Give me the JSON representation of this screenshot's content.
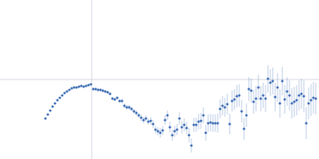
{
  "chart_data": {
    "type": "scatter",
    "color": "#3b6bb4",
    "marker": "circle",
    "grid": true,
    "tick_labels": false,
    "xlim": [
      0,
      400
    ],
    "ylim": [
      0,
      200
    ],
    "xticks": [
      115
    ],
    "yticks": [
      100
    ],
    "x": [
      57,
      60,
      63,
      66,
      69,
      72,
      75,
      78,
      81,
      84,
      87,
      90,
      93,
      96,
      99,
      102,
      105,
      108,
      111,
      114,
      117,
      120,
      123,
      126,
      129,
      132,
      135,
      138,
      141,
      144,
      147,
      150,
      153,
      156,
      159,
      162,
      165,
      168,
      171,
      174,
      177,
      180,
      183,
      186,
      189,
      192,
      195,
      198,
      201,
      204,
      207,
      210,
      213,
      216,
      219,
      222,
      225,
      228,
      231,
      234,
      237,
      240,
      243,
      246,
      249,
      252,
      255,
      258,
      261,
      264,
      267,
      270,
      273,
      276,
      279,
      282,
      285,
      288,
      291,
      294,
      297,
      300,
      303,
      306,
      309,
      312,
      315,
      318,
      321,
      324,
      327,
      330,
      333,
      336,
      339,
      342,
      345,
      348,
      351,
      354,
      357,
      360,
      363,
      366,
      369,
      372,
      375,
      378,
      381,
      384,
      387,
      390,
      393,
      396
    ],
    "values": [
      51,
      56,
      61,
      66,
      70,
      74,
      77,
      80,
      83,
      85,
      87,
      89,
      90,
      90,
      91,
      92,
      91,
      92,
      93,
      94,
      88,
      88,
      87,
      87,
      86,
      85,
      84,
      82,
      76,
      75,
      77,
      73,
      73,
      67,
      65,
      65,
      63,
      60,
      58,
      55,
      52,
      49,
      51,
      47,
      48,
      44,
      37,
      35,
      33,
      36,
      49,
      55,
      40,
      30,
      35,
      37,
      51,
      40,
      43,
      39,
      30,
      17,
      43,
      43,
      47,
      48,
      55,
      33,
      45,
      46,
      45,
      45,
      45,
      63,
      67,
      65,
      69,
      44,
      73,
      75,
      79,
      80,
      60,
      38,
      55,
      88,
      86,
      72,
      76,
      90,
      76,
      80,
      76,
      101,
      96,
      98,
      78,
      90,
      70,
      98,
      75,
      85,
      80,
      70,
      72,
      74,
      80,
      82,
      79,
      45,
      70,
      74,
      77,
      76
    ],
    "errors": [
      1,
      1,
      1,
      1,
      1,
      1,
      1,
      1,
      1,
      1,
      1,
      1,
      1,
      1,
      1,
      1,
      1,
      1,
      1,
      1,
      2,
      2,
      2,
      2,
      2,
      2,
      2,
      2,
      2,
      2,
      2,
      2,
      3,
      3,
      3,
      3,
      3,
      3,
      3,
      3,
      4,
      4,
      4,
      4,
      5,
      5,
      5,
      5,
      6,
      6,
      6,
      6,
      7,
      7,
      7,
      7,
      8,
      8,
      8,
      8,
      9,
      9,
      9,
      9,
      10,
      10,
      10,
      10,
      11,
      11,
      11,
      11,
      12,
      12,
      12,
      12,
      13,
      13,
      13,
      13,
      14,
      14,
      14,
      14,
      15,
      15,
      15,
      15,
      16,
      16,
      16,
      16,
      17,
      17,
      17,
      17,
      18,
      18,
      18,
      18,
      18,
      18,
      19,
      19,
      19,
      19,
      19,
      19,
      20,
      20,
      20,
      20,
      20,
      20
    ]
  }
}
